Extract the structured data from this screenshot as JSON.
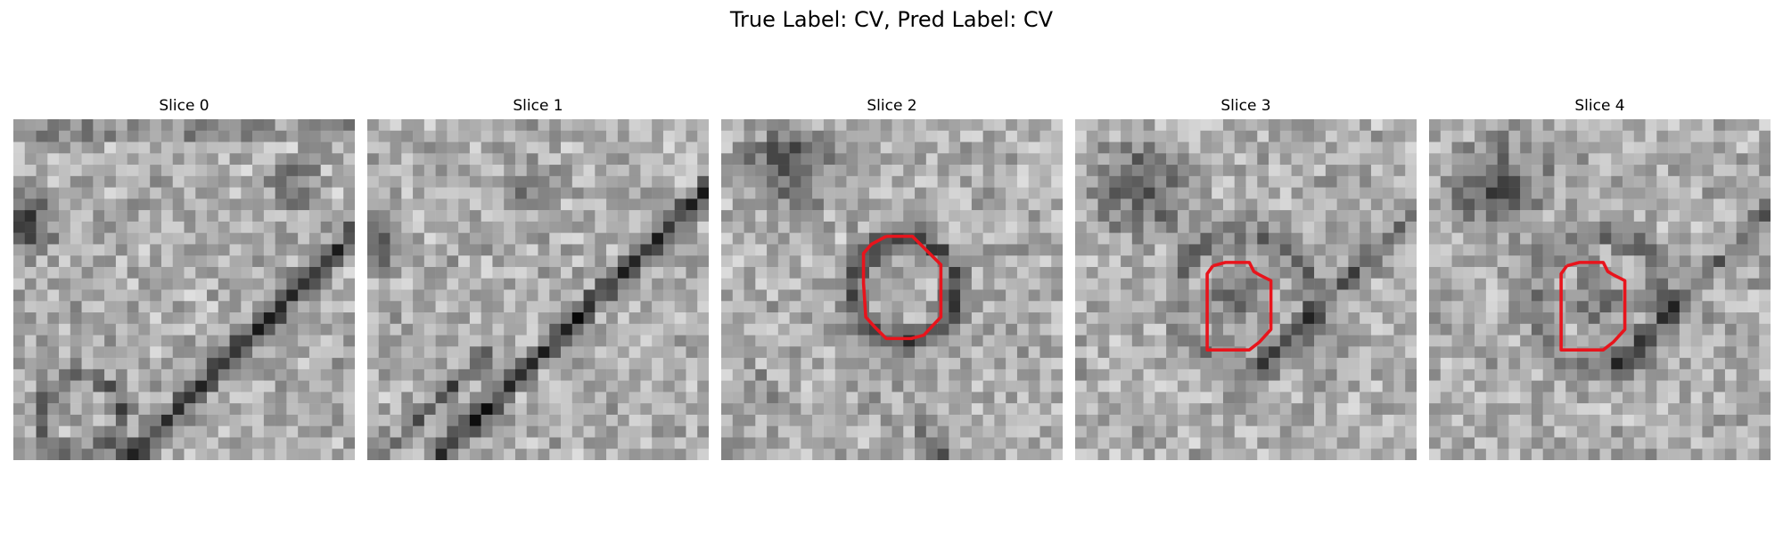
{
  "figure": {
    "suptitle": "True Label: CV, Pred Label: CV",
    "colormap": "gray",
    "contour_color": "#e8141c"
  },
  "panels": [
    {
      "title": "Slice 0",
      "has_contour": false
    },
    {
      "title": "Slice 1",
      "has_contour": false
    },
    {
      "title": "Slice 2",
      "has_contour": true
    },
    {
      "title": "Slice 3",
      "has_contour": true
    },
    {
      "title": "Slice 4",
      "has_contour": true
    }
  ]
}
